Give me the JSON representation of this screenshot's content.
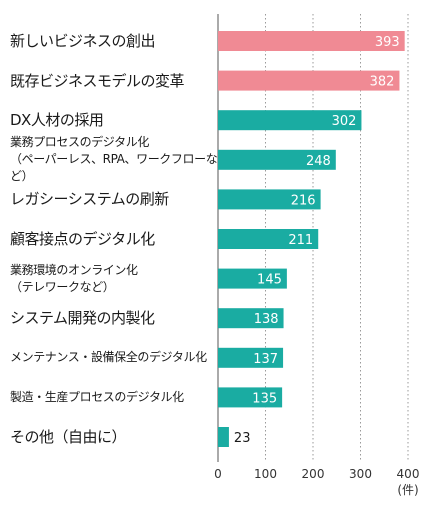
{
  "chart_data": {
    "type": "bar",
    "orientation": "horizontal",
    "categories": [
      "新しいビジネスの創出",
      "既存ビジネスモデルの変革",
      "DX人材の採用",
      "業務プロセスのデジタル化\n（ペーパーレス、RPA、ワークフローなど）",
      "レガシーシステムの刷新",
      "顧客接点のデジタル化",
      "業務環境のオンライン化\n（テレワークなど）",
      "システム開発の内製化",
      "メンテナンス・設備保全のデジタル化",
      "製造・生産プロセスのデジタル化",
      "その他（自由に）"
    ],
    "values": [
      393,
      382,
      302,
      248,
      216,
      211,
      145,
      138,
      137,
      135,
      23
    ],
    "data_labels": [
      "393",
      "382",
      "302",
      "248",
      "216",
      "211",
      "145",
      "138",
      "137",
      "135",
      "23"
    ],
    "bar_colors": [
      "#f08a94",
      "#f08a94",
      "#1aaca2",
      "#1aaca2",
      "#1aaca2",
      "#1aaca2",
      "#1aaca2",
      "#1aaca2",
      "#1aaca2",
      "#1aaca2",
      "#1aaca2"
    ],
    "xlim": [
      0,
      400
    ],
    "xticks": [
      "0",
      "100",
      "200",
      "300",
      "400"
    ],
    "x_unit": "(件)",
    "grid": "vertical-dotted",
    "title": "",
    "xlabel": "",
    "ylabel": ""
  },
  "colors": {
    "highlight_bar": "#f08a94",
    "default_bar": "#1aaca2",
    "grid": "#9a9a9a",
    "axis": "#555555"
  }
}
